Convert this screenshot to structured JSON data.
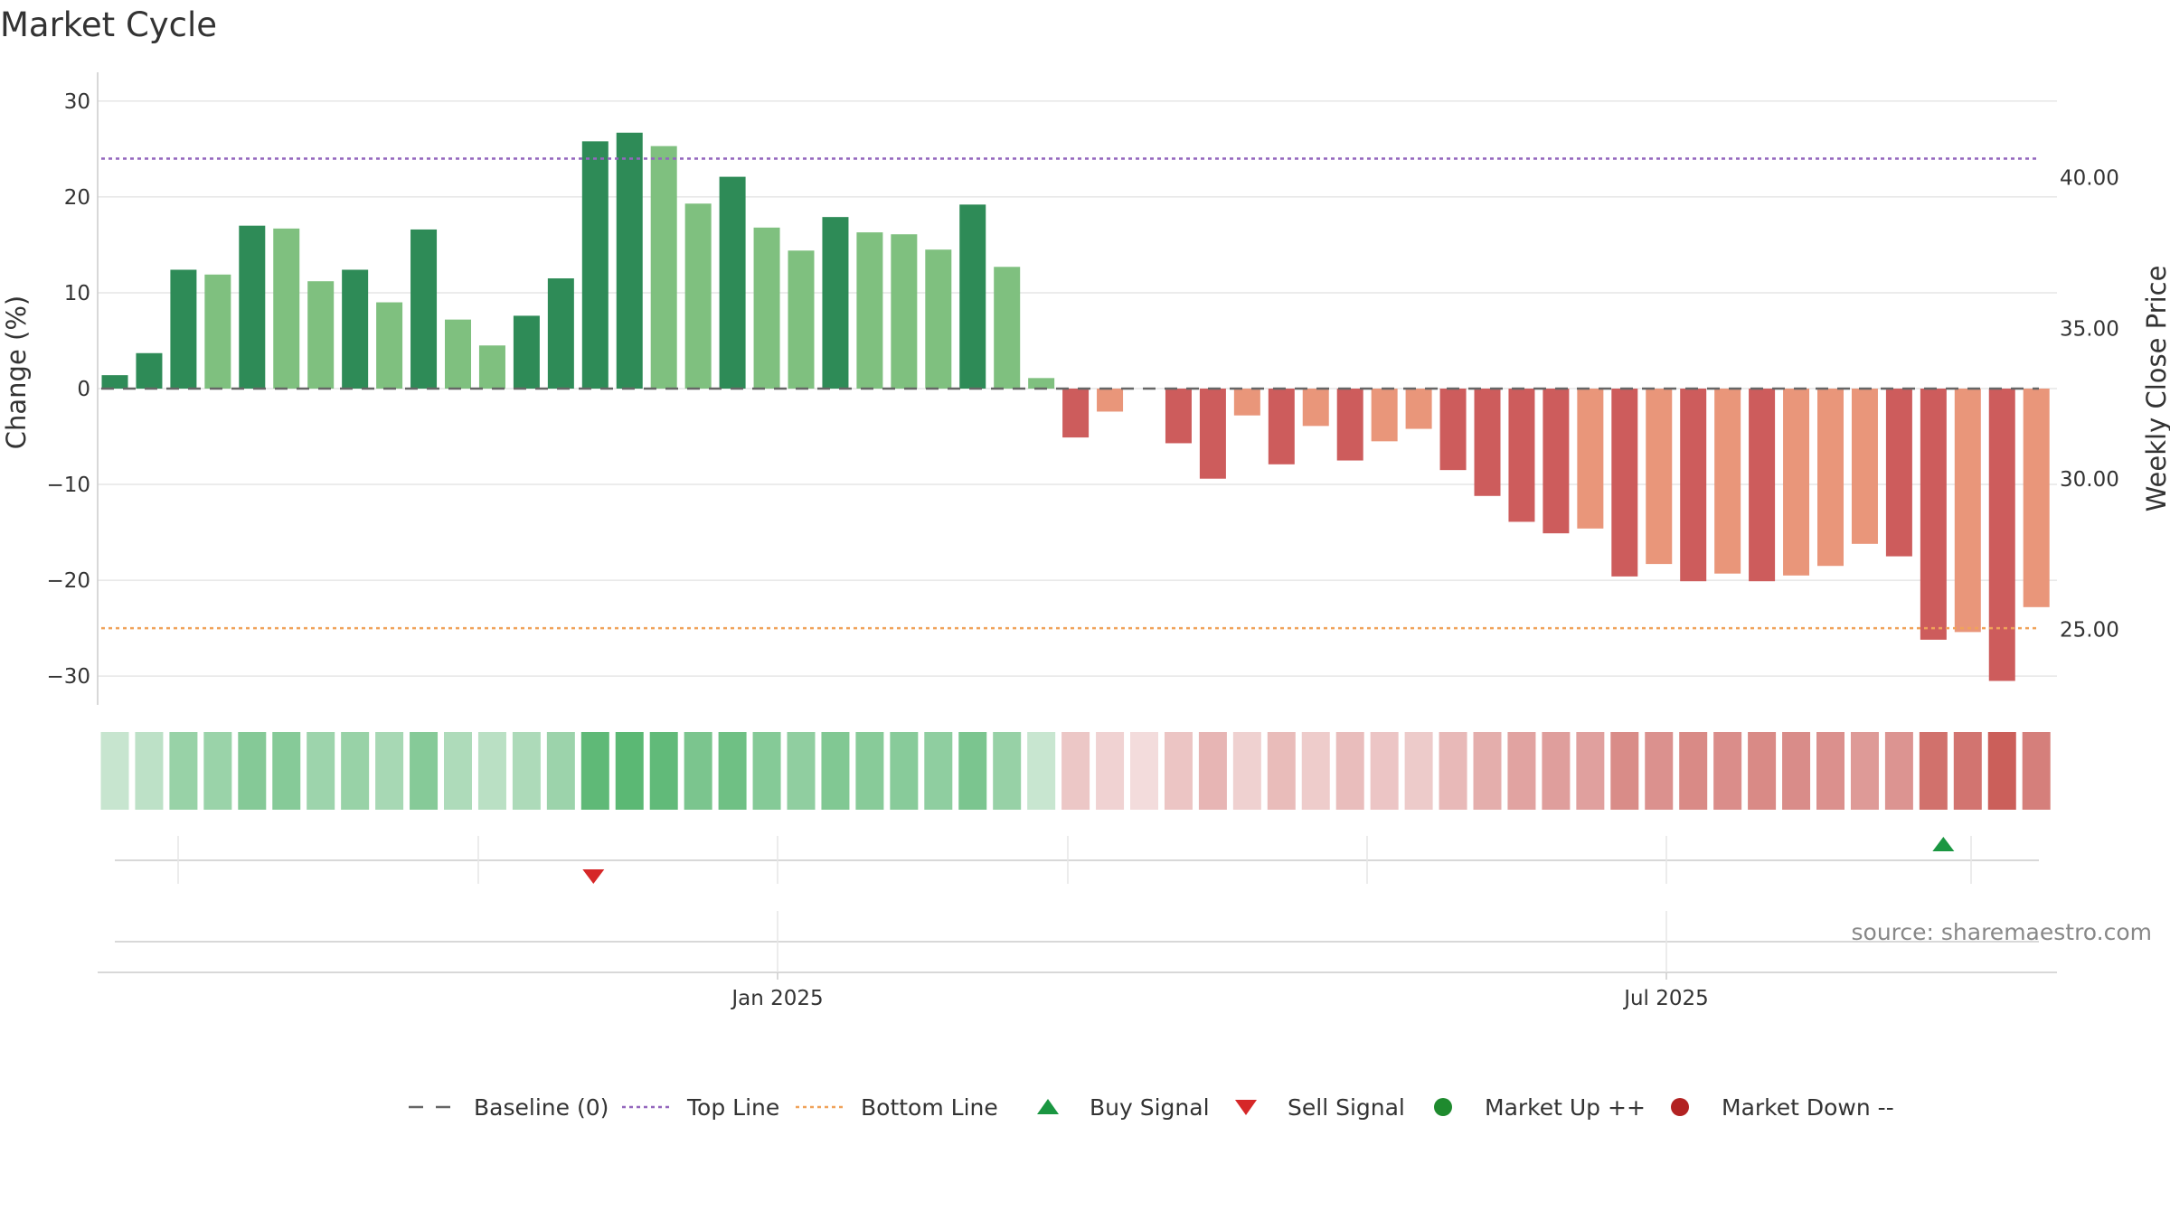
{
  "chart_data": {
    "type": "bar",
    "title": "Market Cycle",
    "ylabel": "Change (%)",
    "y2label": "Weekly Close Price",
    "ylim": [
      -33,
      33
    ],
    "yticks": [
      30,
      20,
      10,
      0,
      -10,
      -20,
      -30
    ],
    "yticklabels": [
      "30",
      "20",
      "10",
      "0",
      "−10",
      "−20",
      "−30"
    ],
    "y2lim": [
      22.5,
      43.5
    ],
    "y2ticks": [
      40,
      35,
      30,
      25
    ],
    "y2ticklabels": [
      "40.00",
      "35.00",
      "30.00",
      "25.00"
    ],
    "top_line": 24,
    "bottom_line": -25,
    "baseline": 0,
    "values": [
      1.4,
      3.7,
      12.4,
      11.9,
      17.0,
      16.7,
      11.2,
      12.4,
      9.0,
      16.6,
      7.2,
      4.5,
      7.6,
      11.5,
      25.8,
      26.7,
      25.3,
      19.3,
      22.1,
      16.8,
      14.4,
      17.9,
      16.3,
      16.1,
      14.5,
      19.2,
      12.7,
      1.1,
      -5.1,
      -2.4,
      0,
      -5.7,
      -9.4,
      -2.8,
      -7.9,
      -3.9,
      -7.5,
      -5.5,
      -4.2,
      -8.5,
      -11.2,
      -13.9,
      -15.1,
      -14.6,
      -19.6,
      -18.3,
      -20.1,
      -19.3,
      -20.1,
      -19.5,
      -18.5,
      -16.2,
      -17.5,
      -26.2,
      -25.4,
      -30.5,
      -22.8
    ],
    "x_dates_label": [
      "Jan 2025",
      "Jul 2025"
    ],
    "signals": {
      "sell_index": 14,
      "buy_index": 53
    },
    "legend": [
      {
        "label": "Baseline (0)",
        "kind": "dash",
        "color": "#666666"
      },
      {
        "label": "Top Line",
        "kind": "dot",
        "color": "#9467bd"
      },
      {
        "label": "Bottom Line",
        "kind": "dot",
        "color": "#f0a25a"
      },
      {
        "label": "Buy Signal",
        "kind": "tri-up",
        "color": "#1a9641"
      },
      {
        "label": "Sell Signal",
        "kind": "tri-down",
        "color": "#d62728"
      },
      {
        "label": "Market Up ++",
        "kind": "circle",
        "color": "#1e8a2e"
      },
      {
        "label": "Market Down --",
        "kind": "circle",
        "color": "#b22222"
      }
    ],
    "source": "source: sharemaestro.com"
  },
  "colors": {
    "up_dark": "#2e8b57",
    "up_light": "#7fc07f",
    "down_dark": "#cd5c5c",
    "down_light": "#e9967a"
  }
}
